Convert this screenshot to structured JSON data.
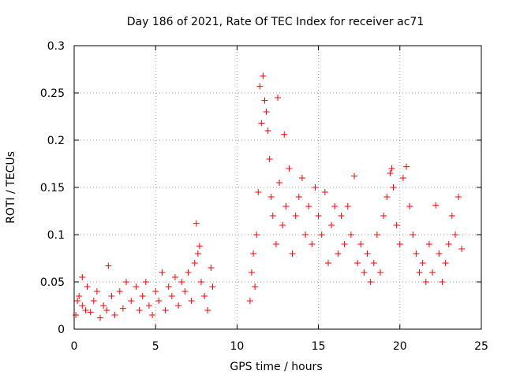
{
  "chart_data": {
    "type": "scatter",
    "title": "Day 186 of 2021, Rate Of TEC Index for receiver ac71",
    "xlabel": "GPS time / hours",
    "ylabel": "ROTI / TECUs",
    "xlim": [
      0,
      25
    ],
    "ylim": [
      0,
      0.3
    ],
    "xticks": [
      0,
      5,
      10,
      15,
      20,
      25
    ],
    "yticks": [
      0,
      0.05,
      0.1,
      0.15,
      0.2,
      0.25,
      0.3
    ],
    "xtick_labels": [
      "0",
      "5",
      "10",
      "15",
      "20",
      "25"
    ],
    "ytick_labels": [
      "0",
      "0.05",
      "0.1",
      "0.15",
      "0.2",
      "0.25",
      "0.3"
    ],
    "grid": true,
    "marker": "+",
    "color": "#ff0000",
    "series": [
      {
        "name": "ROTI",
        "points": [
          [
            0.1,
            0.015
          ],
          [
            0.2,
            0.03
          ],
          [
            0.3,
            0.035
          ],
          [
            0.5,
            0.025
          ],
          [
            0.5,
            0.055
          ],
          [
            0.7,
            0.02
          ],
          [
            0.8,
            0.045
          ],
          [
            1.0,
            0.018
          ],
          [
            1.2,
            0.03
          ],
          [
            1.4,
            0.04
          ],
          [
            1.6,
            0.012
          ],
          [
            1.8,
            0.025
          ],
          [
            2.0,
            0.02
          ],
          [
            2.1,
            0.067
          ],
          [
            2.3,
            0.035
          ],
          [
            2.5,
            0.015
          ],
          [
            2.8,
            0.04
          ],
          [
            3.0,
            0.022
          ],
          [
            3.2,
            0.05
          ],
          [
            3.5,
            0.03
          ],
          [
            3.8,
            0.045
          ],
          [
            4.0,
            0.02
          ],
          [
            4.2,
            0.035
          ],
          [
            4.4,
            0.05
          ],
          [
            4.6,
            0.025
          ],
          [
            4.8,
            0.015
          ],
          [
            5.0,
            0.04
          ],
          [
            5.2,
            0.03
          ],
          [
            5.4,
            0.06
          ],
          [
            5.6,
            0.02
          ],
          [
            5.8,
            0.045
          ],
          [
            6.0,
            0.035
          ],
          [
            6.2,
            0.055
          ],
          [
            6.4,
            0.025
          ],
          [
            6.6,
            0.05
          ],
          [
            6.8,
            0.04
          ],
          [
            7.0,
            0.06
          ],
          [
            7.2,
            0.03
          ],
          [
            7.4,
            0.07
          ],
          [
            7.5,
            0.112
          ],
          [
            7.6,
            0.08
          ],
          [
            7.7,
            0.088
          ],
          [
            7.8,
            0.05
          ],
          [
            8.0,
            0.035
          ],
          [
            8.2,
            0.02
          ],
          [
            8.4,
            0.065
          ],
          [
            8.5,
            0.045
          ],
          [
            10.8,
            0.03
          ],
          [
            10.9,
            0.06
          ],
          [
            11.0,
            0.08
          ],
          [
            11.1,
            0.045
          ],
          [
            11.2,
            0.1
          ],
          [
            11.3,
            0.145
          ],
          [
            11.4,
            0.257
          ],
          [
            11.5,
            0.218
          ],
          [
            11.6,
            0.268
          ],
          [
            11.7,
            0.242
          ],
          [
            11.8,
            0.23
          ],
          [
            11.9,
            0.21
          ],
          [
            12.0,
            0.18
          ],
          [
            12.1,
            0.14
          ],
          [
            12.2,
            0.12
          ],
          [
            12.4,
            0.09
          ],
          [
            12.5,
            0.245
          ],
          [
            12.6,
            0.155
          ],
          [
            12.8,
            0.11
          ],
          [
            12.9,
            0.206
          ],
          [
            13.0,
            0.13
          ],
          [
            13.2,
            0.17
          ],
          [
            13.4,
            0.08
          ],
          [
            13.6,
            0.12
          ],
          [
            13.8,
            0.14
          ],
          [
            14.0,
            0.16
          ],
          [
            14.2,
            0.1
          ],
          [
            14.4,
            0.13
          ],
          [
            14.6,
            0.09
          ],
          [
            14.8,
            0.15
          ],
          [
            15.0,
            0.12
          ],
          [
            15.2,
            0.1
          ],
          [
            15.4,
            0.145
          ],
          [
            15.6,
            0.07
          ],
          [
            15.8,
            0.11
          ],
          [
            16.0,
            0.13
          ],
          [
            16.2,
            0.08
          ],
          [
            16.4,
            0.12
          ],
          [
            16.6,
            0.09
          ],
          [
            16.8,
            0.13
          ],
          [
            17.0,
            0.1
          ],
          [
            17.2,
            0.162
          ],
          [
            17.4,
            0.07
          ],
          [
            17.6,
            0.09
          ],
          [
            17.8,
            0.06
          ],
          [
            18.0,
            0.08
          ],
          [
            18.2,
            0.05
          ],
          [
            18.4,
            0.07
          ],
          [
            18.6,
            0.1
          ],
          [
            18.8,
            0.06
          ],
          [
            19.0,
            0.12
          ],
          [
            19.2,
            0.14
          ],
          [
            19.4,
            0.165
          ],
          [
            19.5,
            0.17
          ],
          [
            19.6,
            0.15
          ],
          [
            19.8,
            0.11
          ],
          [
            20.0,
            0.09
          ],
          [
            20.2,
            0.16
          ],
          [
            20.4,
            0.172
          ],
          [
            20.6,
            0.13
          ],
          [
            20.8,
            0.1
          ],
          [
            21.0,
            0.08
          ],
          [
            21.2,
            0.06
          ],
          [
            21.4,
            0.07
          ],
          [
            21.6,
            0.05
          ],
          [
            21.8,
            0.09
          ],
          [
            22.0,
            0.06
          ],
          [
            22.2,
            0.131
          ],
          [
            22.4,
            0.08
          ],
          [
            22.6,
            0.05
          ],
          [
            22.8,
            0.07
          ],
          [
            23.0,
            0.09
          ],
          [
            23.2,
            0.12
          ],
          [
            23.4,
            0.1
          ],
          [
            23.6,
            0.14
          ],
          [
            23.8,
            0.085
          ]
        ]
      }
    ]
  }
}
